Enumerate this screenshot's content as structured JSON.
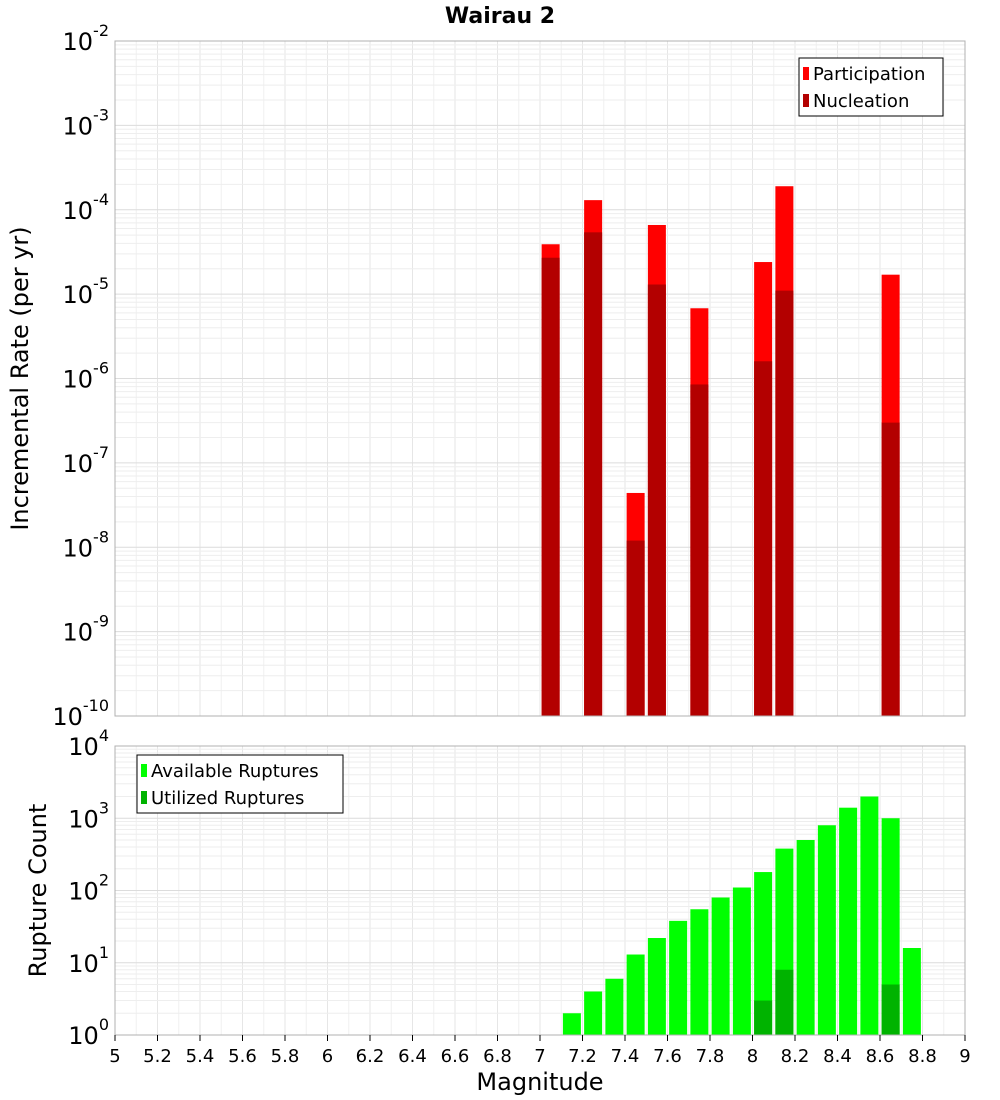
{
  "chart_data": [
    {
      "type": "bar",
      "scale_y": "log",
      "title": "Wairau 2",
      "ylabel": "Incremental Rate (per yr)",
      "xlim": [
        5,
        9
      ],
      "ylim": [
        1e-10,
        0.01
      ],
      "y_ticks": [
        {
          "base": "10",
          "exp": "-10",
          "value": 1e-10
        },
        {
          "base": "10",
          "exp": "-9",
          "value": 1e-09
        },
        {
          "base": "10",
          "exp": "-8",
          "value": 1e-08
        },
        {
          "base": "10",
          "exp": "-7",
          "value": 1e-07
        },
        {
          "base": "10",
          "exp": "-6",
          "value": 1e-06
        },
        {
          "base": "10",
          "exp": "-5",
          "value": 1e-05
        },
        {
          "base": "10",
          "exp": "-4",
          "value": 0.0001
        },
        {
          "base": "10",
          "exp": "-3",
          "value": 0.001
        },
        {
          "base": "10",
          "exp": "-2",
          "value": 0.01
        }
      ],
      "grid": true,
      "legend_position": "top-right",
      "series": [
        {
          "name": "Participation",
          "color": "#ff0000",
          "x": [
            7.05,
            7.25,
            7.45,
            7.55,
            7.75,
            8.05,
            8.15,
            8.65
          ],
          "values": [
            3.9e-05,
            0.00013,
            4.4e-08,
            6.6e-05,
            6.8e-06,
            2.4e-05,
            0.00019,
            1.7e-05
          ]
        },
        {
          "name": "Nucleation",
          "color": "#b30000",
          "x": [
            7.05,
            7.25,
            7.45,
            7.55,
            7.75,
            8.05,
            8.15,
            8.65
          ],
          "values": [
            2.7e-05,
            5.4e-05,
            1.2e-08,
            1.3e-05,
            8.5e-07,
            1.6e-06,
            1.1e-05,
            3e-07
          ]
        }
      ]
    },
    {
      "type": "bar",
      "scale_y": "log",
      "xlabel": "Magnitude",
      "ylabel": "Rupture Count",
      "xlim": [
        5,
        9
      ],
      "ylim": [
        1,
        10000.0
      ],
      "x_ticks": [
        "5",
        "5.2",
        "5.4",
        "5.6",
        "5.8",
        "6",
        "6.2",
        "6.4",
        "6.6",
        "6.8",
        "7",
        "7.2",
        "7.4",
        "7.6",
        "7.8",
        "8",
        "8.2",
        "8.4",
        "8.6",
        "8.8",
        "9"
      ],
      "y_ticks": [
        {
          "base": "10",
          "exp": "0",
          "value": 1
        },
        {
          "base": "10",
          "exp": "1",
          "value": 10
        },
        {
          "base": "10",
          "exp": "2",
          "value": 100
        },
        {
          "base": "10",
          "exp": "3",
          "value": 1000
        },
        {
          "base": "10",
          "exp": "4",
          "value": 10000
        }
      ],
      "grid": true,
      "legend_position": "top-left",
      "series": [
        {
          "name": "Available Ruptures",
          "color": "#00ff00",
          "x": [
            6.85,
            7.05,
            7.15,
            7.25,
            7.35,
            7.45,
            7.55,
            7.65,
            7.75,
            7.85,
            7.95,
            8.05,
            8.15,
            8.25,
            8.35,
            8.45,
            8.55,
            8.65,
            8.75
          ],
          "values": [
            1,
            1,
            2,
            4,
            6,
            13,
            22,
            38,
            55,
            80,
            110,
            180,
            380,
            500,
            800,
            1400,
            2000,
            1000,
            16
          ]
        },
        {
          "name": "Utilized Ruptures",
          "color": "#00b300",
          "x": [
            7.05,
            7.25,
            7.45,
            7.55,
            7.75,
            8.05,
            8.15,
            8.55,
            8.65
          ],
          "values": [
            1,
            1,
            1,
            1,
            1,
            3,
            8,
            1,
            5
          ]
        }
      ]
    }
  ]
}
